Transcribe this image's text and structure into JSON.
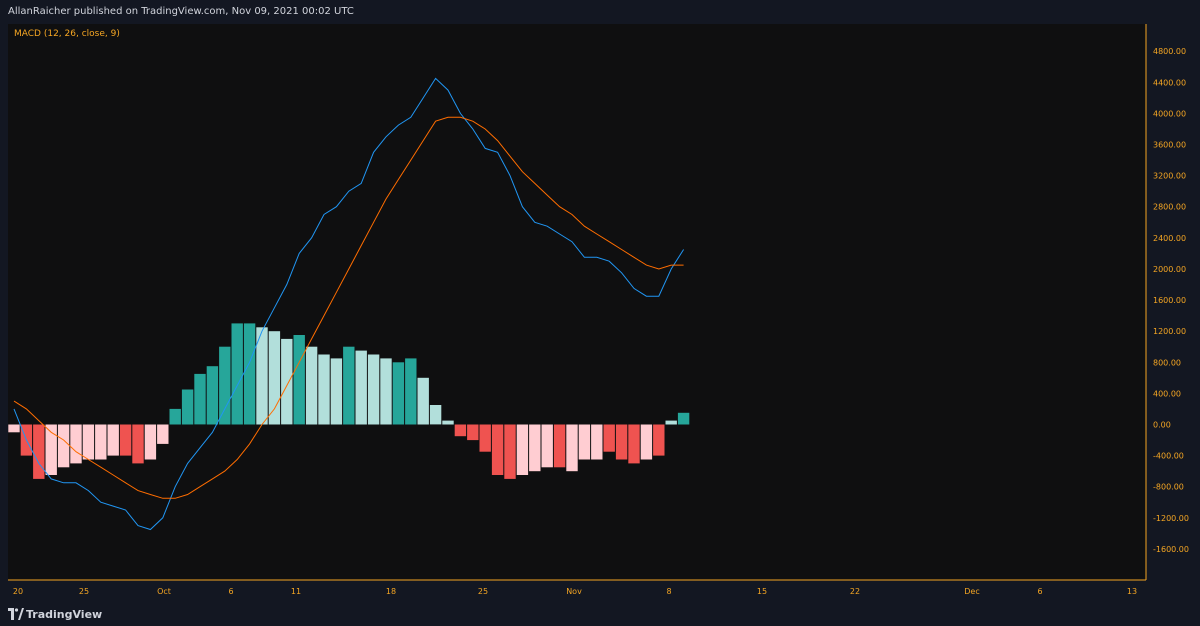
{
  "header": {
    "published_text": "AllanRaicher published on TradingView.com, Nov 09, 2021 00:02 UTC"
  },
  "footer": {
    "brand": "TradingView"
  },
  "colors": {
    "background": "#131722",
    "plot_background": "#0f0f10",
    "axis": "#f5a623",
    "macd_line": "#2196f3",
    "signal_line": "#ff6d00",
    "hist_pos_strong": "#26a69a",
    "hist_pos_weak": "#b2dfdb",
    "hist_neg_strong": "#ef5350",
    "hist_neg_weak": "#ffcdd2"
  },
  "chart_data": {
    "type": "line",
    "title": "MACD (12, 26, close, 9)",
    "x_tick_labels": [
      "20",
      "25",
      "Oct",
      "6",
      "11",
      "18",
      "25",
      "Nov",
      "8",
      "15",
      "22",
      "Dec",
      "6",
      "13"
    ],
    "y_tick_labels": [
      "4800.00",
      "4400.00",
      "4000.00",
      "3600.00",
      "3200.00",
      "2800.00",
      "2400.00",
      "2000.00",
      "1600.00",
      "1200.00",
      "800.00",
      "400.00",
      "0.00",
      "-400.00",
      "-800.00",
      "-1200.00",
      "-1600.00"
    ],
    "ylim": [
      -2000,
      5150
    ],
    "grid": false,
    "series": [
      {
        "name": "MACD",
        "type": "line",
        "values": [
          200,
          -200,
          -500,
          -700,
          -750,
          -750,
          -850,
          -1000,
          -1050,
          -1100,
          -1300,
          -1350,
          -1200,
          -800,
          -500,
          -300,
          -100,
          200,
          500,
          800,
          1200,
          1500,
          1800,
          2200,
          2400,
          2700,
          2800,
          3000,
          3100,
          3500,
          3700,
          3850,
          3950,
          4200,
          4450,
          4300,
          4000,
          3800,
          3550,
          3500,
          3200,
          2800,
          2600,
          2550,
          2450,
          2350,
          2150,
          2150,
          2100,
          1950,
          1750,
          1650,
          1650,
          2000,
          2250
        ]
      },
      {
        "name": "Signal",
        "type": "line",
        "values": [
          300,
          200,
          50,
          -100,
          -200,
          -350,
          -450,
          -550,
          -650,
          -750,
          -850,
          -900,
          -950,
          -950,
          -900,
          -800,
          -700,
          -600,
          -450,
          -250,
          0,
          200,
          500,
          800,
          1100,
          1400,
          1700,
          2000,
          2300,
          2600,
          2900,
          3150,
          3400,
          3650,
          3900,
          3950,
          3950,
          3900,
          3800,
          3650,
          3450,
          3250,
          3100,
          2950,
          2800,
          2700,
          2550,
          2450,
          2350,
          2250,
          2150,
          2050,
          2000,
          2050,
          2050
        ]
      },
      {
        "name": "Histogram",
        "type": "bar",
        "values": [
          -100,
          -400,
          -700,
          -650,
          -550,
          -500,
          -450,
          -450,
          -400,
          -400,
          -500,
          -450,
          -250,
          200,
          450,
          650,
          750,
          1000,
          1300,
          1300,
          1250,
          1200,
          1100,
          1150,
          1000,
          900,
          850,
          1000,
          950,
          900,
          850,
          800,
          850,
          600,
          250,
          50,
          -150,
          -200,
          -350,
          -650,
          -700,
          -650,
          -600,
          -550,
          -550,
          -600,
          -450,
          -450,
          -350,
          -450,
          -500,
          -450,
          -400,
          50,
          150
        ],
        "colors": [
          "weak",
          "strong",
          "strong",
          "weak",
          "weak",
          "weak",
          "weak",
          "weak",
          "weak",
          "strong",
          "strong",
          "weak",
          "weak",
          "strong",
          "strong",
          "strong",
          "strong",
          "strong",
          "strong",
          "strong",
          "weak",
          "weak",
          "weak",
          "strong",
          "weak",
          "weak",
          "weak",
          "strong",
          "weak",
          "weak",
          "weak",
          "strong",
          "strong",
          "weak",
          "weak",
          "weak",
          "strong",
          "strong",
          "strong",
          "strong",
          "strong",
          "weak",
          "weak",
          "weak",
          "strong",
          "weak",
          "weak",
          "weak",
          "strong",
          "strong",
          "strong",
          "weak",
          "strong",
          "weak",
          "strong"
        ]
      }
    ]
  }
}
